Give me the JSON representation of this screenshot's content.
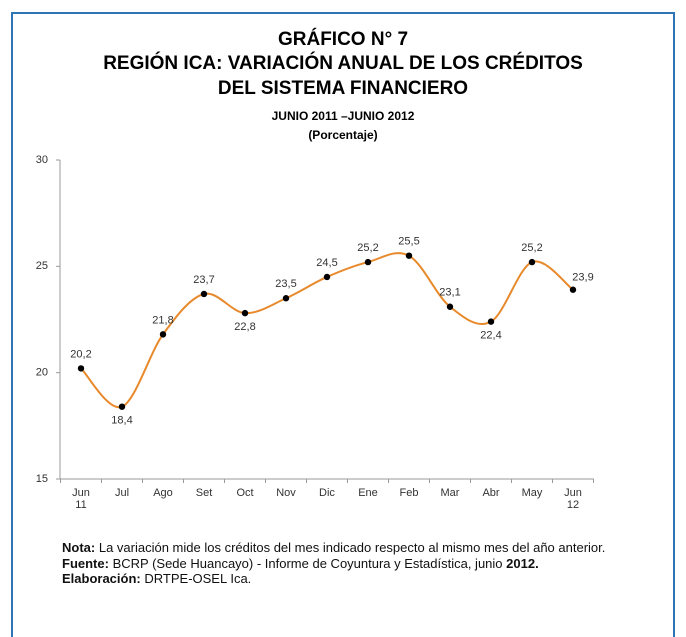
{
  "chart_data": {
    "type": "line",
    "title": [
      "GRÁFICO N° 7",
      "REGIÓN ICA: VARIACIÓN ANUAL DE LOS CRÉDITOS",
      "DEL SISTEMA FINANCIERO"
    ],
    "subtitle": [
      "JUNIO 2011 –JUNIO 2012",
      "(Porcentaje)"
    ],
    "categories": [
      "Jun\n11",
      "Jul",
      "Ago",
      "Set",
      "Oct",
      "Nov",
      "Dic",
      "Ene",
      "Feb",
      "Mar",
      "Abr",
      "May",
      "Jun\n12"
    ],
    "values": [
      20.2,
      18.4,
      21.8,
      23.7,
      22.8,
      23.5,
      24.5,
      25.2,
      25.5,
      23.1,
      22.4,
      25.2,
      23.9
    ],
    "value_labels": [
      "20,2",
      "18,4",
      "21,8",
      "23,7",
      "22,8",
      "23,5",
      "24,5",
      "25,2",
      "25,5",
      "23,1",
      "22,4",
      "25,2",
      "23,9"
    ],
    "color": "#e8892b",
    "ylim": [
      15,
      30
    ],
    "yticks": [
      15,
      20,
      25,
      30
    ],
    "grid": false
  },
  "notes": [
    {
      "label": "Nota:",
      "text": "La variación mide los créditos del mes indicado respecto al mismo mes del año anterior."
    },
    {
      "label": "Fuente:",
      "text": "BCRP (Sede Huancayo) -  Informe de Coyuntura y Estadística, junio",
      "bold_tail": "2012."
    },
    {
      "label": "Elaboración:",
      "text": "DRTPE-OSEL Ica."
    }
  ]
}
